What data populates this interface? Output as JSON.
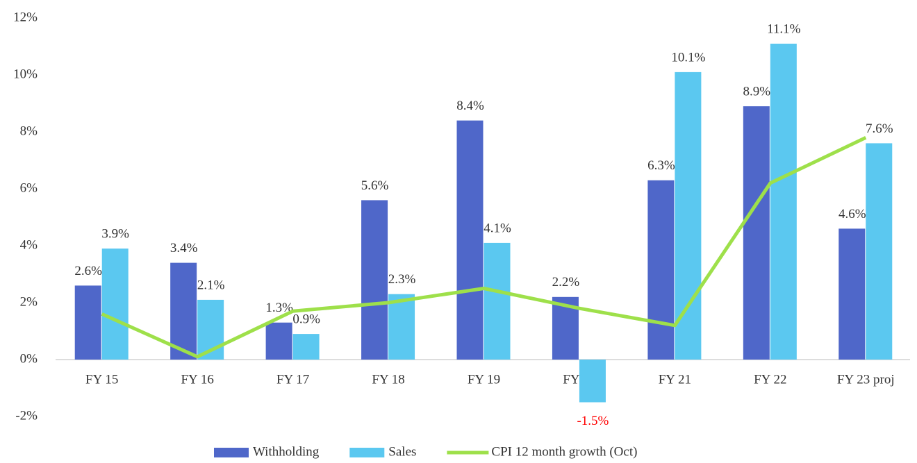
{
  "chart_data": {
    "type": "bar_line",
    "categories": [
      "FY 15",
      "FY 16",
      "FY 17",
      "FY 18",
      "FY 19",
      "FY 20",
      "FY 21",
      "FY 22",
      "FY 23 proj"
    ],
    "series": [
      {
        "name": "Withholding",
        "type": "bar",
        "color": "#4f67c9",
        "values": [
          2.6,
          3.4,
          1.3,
          5.6,
          8.4,
          2.2,
          6.3,
          8.9,
          4.6
        ],
        "value_labels": [
          "2.6%",
          "3.4%",
          "1.3%",
          "5.6%",
          "8.4%",
          "2.2%",
          "6.3%",
          "8.9%",
          "4.6%"
        ]
      },
      {
        "name": "Sales",
        "type": "bar",
        "color": "#5bc8f0",
        "values": [
          3.9,
          2.1,
          0.9,
          2.3,
          4.1,
          -1.5,
          10.1,
          11.1,
          7.6
        ],
        "value_labels": [
          "3.9%",
          "2.1%",
          "0.9%",
          "2.3%",
          "4.1%",
          "-1.5%",
          "10.1%",
          "11.1%",
          "7.6%"
        ]
      },
      {
        "name": "CPI 12 month growth (Oct)",
        "type": "line",
        "color": "#9ee04a",
        "values": [
          1.6,
          0.1,
          1.7,
          2.0,
          2.5,
          1.8,
          1.2,
          6.2,
          7.8
        ]
      }
    ],
    "negative_label_color": "#ff0000",
    "ylim": [
      -2,
      12
    ],
    "yticks": [
      {
        "value": -2,
        "label": "-2%"
      },
      {
        "value": 0,
        "label": "0%"
      },
      {
        "value": 2,
        "label": "2%"
      },
      {
        "value": 4,
        "label": "4%"
      },
      {
        "value": 6,
        "label": "6%"
      },
      {
        "value": 8,
        "label": "8%"
      },
      {
        "value": 10,
        "label": "10%"
      },
      {
        "value": 12,
        "label": "12%"
      }
    ],
    "legend": "bottom"
  }
}
